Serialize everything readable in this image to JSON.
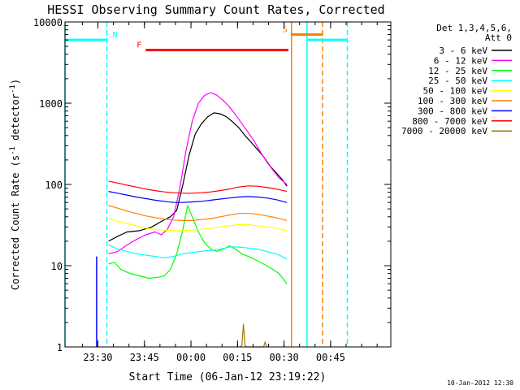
{
  "chart_data": {
    "type": "line",
    "title": "HESSI Observing Summary Count Rates, Corrected",
    "xlabel": "Start Time (06-Jan-12 23:19:22)",
    "ylabel": "Corrected Count Rate (s⁻¹ detector⁻¹)",
    "ylabel_main": "Corrected Count Rate (s",
    "ylabel_sup1": "-1",
    "ylabel_mid": " detector",
    "ylabel_sup2": "-1",
    "ylabel_end": ")",
    "y_scale": "log",
    "x_unit": "minutes since 23:19:22",
    "xlim": [
      0,
      105
    ],
    "ylim": [
      1,
      10000
    ],
    "x_ticks": [
      {
        "x": 10.6,
        "label": "23:30"
      },
      {
        "x": 25.6,
        "label": "23:45"
      },
      {
        "x": 40.6,
        "label": "00:00"
      },
      {
        "x": 55.6,
        "label": "00:15"
      },
      {
        "x": 70.6,
        "label": "00:30"
      },
      {
        "x": 85.6,
        "label": "00:45"
      }
    ],
    "y_ticks": [
      {
        "y": 1,
        "label": "1"
      },
      {
        "y": 10,
        "label": "10"
      },
      {
        "y": 100,
        "label": "100"
      },
      {
        "y": 1000,
        "label": "1000"
      },
      {
        "y": 10000,
        "label": "10000"
      }
    ],
    "legend": {
      "position": "right",
      "header_line1": "Det 1,3,4,5,6,",
      "header_line2": "Att 0"
    },
    "footer_date": "10-Jan-2012 12:30",
    "series": [
      {
        "name": "3 - 6 keV",
        "color": "#000000",
        "points": [
          [
            14,
            20
          ],
          [
            17,
            23
          ],
          [
            20,
            26
          ],
          [
            24,
            27
          ],
          [
            28,
            30
          ],
          [
            31,
            35
          ],
          [
            34,
            40
          ],
          [
            36,
            48
          ],
          [
            38,
            100
          ],
          [
            40,
            230
          ],
          [
            42,
            420
          ],
          [
            44,
            560
          ],
          [
            46,
            680
          ],
          [
            48,
            760
          ],
          [
            50,
            740
          ],
          [
            52,
            680
          ],
          [
            54,
            590
          ],
          [
            56,
            500
          ],
          [
            58,
            400
          ],
          [
            60,
            330
          ],
          [
            62,
            270
          ],
          [
            64,
            220
          ],
          [
            66,
            170
          ],
          [
            68,
            140
          ],
          [
            70,
            115
          ],
          [
            71.5,
            95
          ]
        ]
      },
      {
        "name": "6 - 12 keV",
        "color": "#ff00ff",
        "points": [
          [
            14,
            14
          ],
          [
            17,
            15
          ],
          [
            20,
            18
          ],
          [
            23,
            21
          ],
          [
            26,
            24
          ],
          [
            29,
            26
          ],
          [
            31,
            24
          ],
          [
            33,
            28
          ],
          [
            35,
            40
          ],
          [
            37,
            90
          ],
          [
            39,
            260
          ],
          [
            41,
            600
          ],
          [
            43,
            1000
          ],
          [
            45,
            1250
          ],
          [
            47,
            1350
          ],
          [
            49,
            1250
          ],
          [
            51,
            1080
          ],
          [
            53,
            900
          ],
          [
            55,
            720
          ],
          [
            57,
            560
          ],
          [
            59,
            440
          ],
          [
            61,
            340
          ],
          [
            63,
            250
          ],
          [
            65,
            190
          ],
          [
            67,
            150
          ],
          [
            69,
            120
          ],
          [
            71.5,
            100
          ]
        ]
      },
      {
        "name": "12 - 25 keV",
        "color": "#00ff00",
        "points": [
          [
            14,
            10.5
          ],
          [
            16,
            11
          ],
          [
            18,
            9
          ],
          [
            21,
            8
          ],
          [
            24,
            7.5
          ],
          [
            27,
            7
          ],
          [
            30,
            7.2
          ],
          [
            32,
            7.5
          ],
          [
            34,
            9
          ],
          [
            36,
            14
          ],
          [
            38,
            28
          ],
          [
            39.5,
            55
          ],
          [
            41,
            40
          ],
          [
            43,
            26
          ],
          [
            45,
            19
          ],
          [
            47,
            16
          ],
          [
            49,
            15
          ],
          [
            51,
            16
          ],
          [
            53,
            17.5
          ],
          [
            55,
            16
          ],
          [
            57,
            14
          ],
          [
            59,
            13
          ],
          [
            61,
            12
          ],
          [
            63,
            11
          ],
          [
            65,
            10
          ],
          [
            67,
            9
          ],
          [
            69,
            8
          ],
          [
            71.5,
            6
          ]
        ]
      },
      {
        "name": "25 - 50 keV",
        "color": "#00ffff",
        "points": [
          [
            14,
            18
          ],
          [
            17,
            16
          ],
          [
            20,
            15
          ],
          [
            23,
            14
          ],
          [
            26,
            13.5
          ],
          [
            29,
            13
          ],
          [
            32,
            12.5
          ],
          [
            35,
            13
          ],
          [
            38,
            14
          ],
          [
            41,
            14.5
          ],
          [
            44,
            15
          ],
          [
            47,
            15.5
          ],
          [
            50,
            16
          ],
          [
            53,
            17
          ],
          [
            56,
            17
          ],
          [
            59,
            16.5
          ],
          [
            62,
            16
          ],
          [
            65,
            15
          ],
          [
            68,
            14
          ],
          [
            70,
            13
          ],
          [
            71.5,
            12
          ]
        ]
      },
      {
        "name": "50 - 100 keV",
        "color": "#ffff00",
        "points": [
          [
            14,
            38
          ],
          [
            17,
            35
          ],
          [
            20,
            33
          ],
          [
            23,
            31
          ],
          [
            26,
            29
          ],
          [
            29,
            28
          ],
          [
            32,
            27.5
          ],
          [
            35,
            27
          ],
          [
            38,
            27
          ],
          [
            41,
            27.5
          ],
          [
            44,
            28
          ],
          [
            47,
            29
          ],
          [
            50,
            30
          ],
          [
            53,
            31
          ],
          [
            56,
            32
          ],
          [
            59,
            32
          ],
          [
            62,
            31
          ],
          [
            65,
            30
          ],
          [
            68,
            29
          ],
          [
            71.5,
            27
          ]
        ]
      },
      {
        "name": "100 - 300 keV",
        "color": "#ff7f00",
        "points": [
          [
            14,
            55
          ],
          [
            17,
            51
          ],
          [
            20,
            47
          ],
          [
            23,
            44
          ],
          [
            26,
            41
          ],
          [
            29,
            39
          ],
          [
            32,
            37.5
          ],
          [
            35,
            36.5
          ],
          [
            38,
            36
          ],
          [
            41,
            36
          ],
          [
            44,
            37
          ],
          [
            47,
            38
          ],
          [
            50,
            40
          ],
          [
            53,
            42
          ],
          [
            56,
            44
          ],
          [
            59,
            44
          ],
          [
            62,
            43
          ],
          [
            65,
            41
          ],
          [
            68,
            39
          ],
          [
            71.5,
            36
          ]
        ]
      },
      {
        "name": "300 - 800 keV",
        "color": "#0000ff",
        "points": [
          [
            14,
            82
          ],
          [
            17,
            78
          ],
          [
            20,
            74
          ],
          [
            23,
            70
          ],
          [
            26,
            67
          ],
          [
            29,
            64
          ],
          [
            32,
            62
          ],
          [
            35,
            60
          ],
          [
            38,
            60
          ],
          [
            41,
            61
          ],
          [
            44,
            62
          ],
          [
            47,
            64
          ],
          [
            50,
            66
          ],
          [
            53,
            68
          ],
          [
            56,
            70
          ],
          [
            59,
            71
          ],
          [
            62,
            70
          ],
          [
            65,
            68
          ],
          [
            68,
            65
          ],
          [
            71.5,
            60
          ]
        ]
      },
      {
        "name": "800 - 7000 keV",
        "color": "#ff0000",
        "points": [
          [
            14,
            110
          ],
          [
            17,
            104
          ],
          [
            20,
            98
          ],
          [
            23,
            93
          ],
          [
            26,
            88
          ],
          [
            29,
            84
          ],
          [
            32,
            81
          ],
          [
            35,
            79
          ],
          [
            38,
            78
          ],
          [
            41,
            78
          ],
          [
            44,
            79
          ],
          [
            47,
            81
          ],
          [
            50,
            84
          ],
          [
            53,
            88
          ],
          [
            56,
            93
          ],
          [
            59,
            96
          ],
          [
            62,
            95
          ],
          [
            65,
            92
          ],
          [
            68,
            88
          ],
          [
            71.5,
            82
          ]
        ]
      },
      {
        "name": "7000 - 20000 keV",
        "color": "#9a7a00",
        "points": [
          [
            56.5,
            1
          ],
          [
            57,
            1.05
          ],
          [
            57.5,
            1.9
          ],
          [
            58,
            1.05
          ],
          [
            58.5,
            1
          ],
          [
            64,
            1
          ],
          [
            64.5,
            1.15
          ],
          [
            65,
            1
          ]
        ]
      }
    ],
    "status_bars": [
      {
        "label": "N",
        "color": "#00ffff",
        "y": 6000,
        "segments": [
          [
            0,
            13.5
          ],
          [
            78,
            91
          ]
        ]
      },
      {
        "label": "F",
        "color": "#ff0000",
        "y": 4500,
        "segments": [
          [
            26,
            72
          ]
        ]
      },
      {
        "label": "S",
        "color": "#ff7f00",
        "y": 7000,
        "segments": [
          [
            73,
            83
          ]
        ]
      }
    ],
    "boundaries": [
      {
        "color": "#00ffff",
        "style": "solid",
        "x": 0
      },
      {
        "color": "#00ffff",
        "style": "dashed",
        "x": 13.5
      },
      {
        "color": "#00ffff",
        "style": "solid",
        "x": 78
      },
      {
        "color": "#00ffff",
        "style": "dashed",
        "x": 91
      },
      {
        "color": "#ff7f00",
        "style": "solid",
        "x": 73
      },
      {
        "color": "#ff7f00",
        "style": "dashed",
        "x": 83
      }
    ],
    "onset": {
      "color": "#0000ff",
      "x": 10.2
    }
  }
}
